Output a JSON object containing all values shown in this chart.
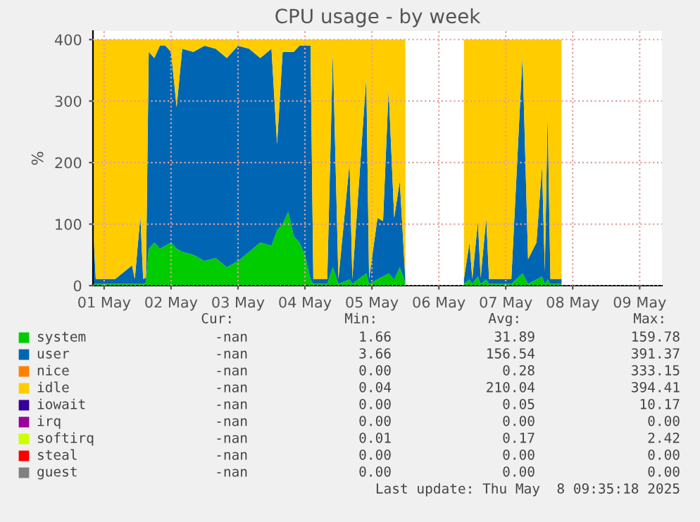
{
  "chart_data": {
    "type": "area",
    "stacked": true,
    "title": "CPU usage - by week",
    "ylabel": "%",
    "x": [
      "2025-04-30T20:00",
      "2025-04-30T21:00",
      "2025-05-01T04:00",
      "2025-05-01T10:00",
      "2025-05-01T11:00",
      "2025-05-01T13:00",
      "2025-05-01T14:00",
      "2025-05-01T15:00",
      "2025-05-01T16:00",
      "2025-05-01T18:00",
      "2025-05-01T20:00",
      "2025-05-01T22:00",
      "2025-05-02T00:00",
      "2025-05-02T02:00",
      "2025-05-02T04:00",
      "2025-05-02T08:00",
      "2025-05-02T12:00",
      "2025-05-02T16:00",
      "2025-05-02T20:00",
      "2025-05-03T00:00",
      "2025-05-03T04:00",
      "2025-05-03T08:00",
      "2025-05-03T12:00",
      "2025-05-03T14:00",
      "2025-05-03T16:00",
      "2025-05-03T18:00",
      "2025-05-03T20:00",
      "2025-05-03T22:00",
      "2025-05-04T00:00",
      "2025-05-04T02:00",
      "2025-05-04T03:00",
      "2025-05-04T08:00",
      "2025-05-04T10:00",
      "2025-05-04T12:00",
      "2025-05-04T16:00",
      "2025-05-04T17:00",
      "2025-05-04T22:00",
      "2025-05-04T23:00",
      "2025-05-05T02:00",
      "2025-05-05T04:00",
      "2025-05-05T06:00",
      "2025-05-05T08:00",
      "2025-05-05T10:00",
      "2025-05-05T12:00",
      "2025-05-05T14:00",
      "2025-05-06T09:00",
      "2025-05-06T11:00",
      "2025-05-06T12:00",
      "2025-05-06T14:00",
      "2025-05-06T15:00",
      "2025-05-06T17:00",
      "2025-05-06T18:00",
      "2025-05-07T02:00",
      "2025-05-07T06:00",
      "2025-05-07T08:00",
      "2025-05-07T11:00",
      "2025-05-07T13:00",
      "2025-05-07T14:00",
      "2025-05-07T15:00",
      "2025-05-07T16:00",
      "2025-05-07T19:00",
      "2025-05-07T20:00"
    ],
    "series": [
      {
        "name": "system",
        "color": "#00cc00",
        "values": [
          3,
          3,
          3,
          3,
          3,
          3,
          3,
          5,
          60,
          70,
          60,
          65,
          70,
          60,
          55,
          50,
          40,
          45,
          30,
          40,
          55,
          70,
          65,
          90,
          100,
          120,
          80,
          70,
          50,
          10,
          3,
          3,
          30,
          3,
          10,
          3,
          20,
          3,
          10,
          15,
          20,
          10,
          30,
          5,
          null,
          3,
          10,
          3,
          15,
          3,
          10,
          3,
          3,
          20,
          3,
          10,
          15,
          3,
          10,
          3,
          3,
          3
        ]
      },
      {
        "name": "user",
        "color": "#0066b3",
        "values": [
          100,
          8,
          8,
          30,
          8,
          110,
          8,
          8,
          320,
          300,
          330,
          325,
          310,
          230,
          330,
          330,
          350,
          340,
          340,
          350,
          330,
          300,
          320,
          140,
          280,
          260,
          300,
          320,
          340,
          380,
          8,
          8,
          350,
          8,
          190,
          8,
          320,
          8,
          100,
          90,
          300,
          100,
          140,
          5,
          null,
          8,
          60,
          8,
          90,
          10,
          100,
          8,
          8,
          355,
          40,
          60,
          180,
          20,
          270,
          8,
          8,
          8
        ]
      },
      {
        "name": "nice",
        "color": "#ff8000",
        "values": [
          null,
          null,
          null,
          null,
          null,
          null,
          null,
          null,
          null,
          null,
          null,
          null,
          null,
          null,
          null,
          null,
          null,
          null,
          null,
          null,
          null,
          null,
          null,
          null,
          null,
          null,
          null,
          null,
          null,
          null,
          null,
          null,
          null,
          null,
          null,
          null,
          null,
          null,
          null,
          null,
          null,
          null,
          null,
          null,
          null,
          null,
          null,
          null,
          null,
          null,
          null,
          null,
          null,
          null,
          null,
          null,
          null,
          null,
          null,
          null,
          null,
          null
        ]
      },
      {
        "name": "idle",
        "color": "#ffcc00",
        "values": [
          297,
          389,
          389,
          367,
          389,
          287,
          389,
          387,
          20,
          30,
          10,
          10,
          20,
          110,
          15,
          20,
          10,
          15,
          30,
          10,
          15,
          30,
          15,
          170,
          20,
          20,
          20,
          10,
          10,
          10,
          389,
          389,
          20,
          389,
          200,
          389,
          60,
          389,
          290,
          295,
          80,
          290,
          230,
          390,
          null,
          389,
          330,
          389,
          295,
          387,
          290,
          389,
          389,
          25,
          357,
          330,
          205,
          377,
          120,
          389,
          389,
          389
        ]
      },
      {
        "name": "iowait",
        "color": "#330099",
        "values": [
          null,
          null,
          null,
          null,
          null,
          null,
          null,
          null,
          null,
          null,
          null,
          null,
          null,
          null,
          null,
          null,
          null,
          null,
          null,
          null,
          null,
          null,
          null,
          null,
          null,
          null,
          null,
          null,
          null,
          null,
          null,
          null,
          null,
          null,
          null,
          null,
          null,
          null,
          null,
          null,
          null,
          null,
          null,
          null,
          null,
          null,
          null,
          null,
          null,
          null,
          null,
          null,
          null,
          null,
          null,
          null,
          null,
          null,
          null,
          null,
          null,
          null
        ]
      },
      {
        "name": "irq",
        "color": "#990099",
        "values": [
          null,
          null,
          null,
          null,
          null,
          null,
          null,
          null,
          null,
          null,
          null,
          null,
          null,
          null,
          null,
          null,
          null,
          null,
          null,
          null,
          null,
          null,
          null,
          null,
          null,
          null,
          null,
          null,
          null,
          null,
          null,
          null,
          null,
          null,
          null,
          null,
          null,
          null,
          null,
          null,
          null,
          null,
          null,
          null,
          null,
          null,
          null,
          null,
          null,
          null,
          null,
          null,
          null,
          null,
          null,
          null,
          null,
          null,
          null,
          null,
          null,
          null
        ]
      },
      {
        "name": "softirq",
        "color": "#ccff00",
        "values": [
          null,
          null,
          null,
          null,
          null,
          null,
          null,
          null,
          null,
          null,
          null,
          null,
          null,
          null,
          null,
          null,
          null,
          null,
          null,
          null,
          null,
          null,
          null,
          null,
          null,
          null,
          null,
          null,
          null,
          null,
          null,
          null,
          null,
          null,
          null,
          null,
          null,
          null,
          null,
          null,
          null,
          null,
          null,
          null,
          null,
          null,
          null,
          null,
          null,
          null,
          null,
          null,
          null,
          null,
          null,
          null,
          null,
          null,
          null,
          null,
          null,
          null
        ]
      },
      {
        "name": "steal",
        "color": "#ff0000",
        "values": [
          null,
          null,
          null,
          null,
          null,
          null,
          null,
          null,
          null,
          null,
          null,
          null,
          null,
          null,
          null,
          null,
          null,
          null,
          null,
          null,
          null,
          null,
          null,
          null,
          null,
          null,
          null,
          null,
          null,
          null,
          null,
          null,
          null,
          null,
          null,
          null,
          null,
          null,
          null,
          null,
          null,
          null,
          null,
          null,
          null,
          null,
          null,
          null,
          null,
          null,
          null,
          null,
          null,
          null,
          null,
          null,
          null,
          null,
          null,
          null,
          null,
          null
        ]
      },
      {
        "name": "guest",
        "color": "#808080",
        "values": [
          null,
          null,
          null,
          null,
          null,
          null,
          null,
          null,
          null,
          null,
          null,
          null,
          null,
          null,
          null,
          null,
          null,
          null,
          null,
          null,
          null,
          null,
          null,
          null,
          null,
          null,
          null,
          null,
          null,
          null,
          null,
          null,
          null,
          null,
          null,
          null,
          null,
          null,
          null,
          null,
          null,
          null,
          null,
          null,
          null,
          null,
          null,
          null,
          null,
          null,
          null,
          null,
          null,
          null,
          null,
          null,
          null,
          null,
          null,
          null,
          null,
          null
        ]
      }
    ],
    "xlim": [
      "2025-04-30T20:00",
      "2025-05-09T08:00"
    ],
    "xticks": [
      {
        "value": "2025-05-01",
        "label": "01 May"
      },
      {
        "value": "2025-05-02",
        "label": "02 May"
      },
      {
        "value": "2025-05-03",
        "label": "03 May"
      },
      {
        "value": "2025-05-04",
        "label": "04 May"
      },
      {
        "value": "2025-05-05",
        "label": "05 May"
      },
      {
        "value": "2025-05-06",
        "label": "06 May"
      },
      {
        "value": "2025-05-07",
        "label": "07 May"
      },
      {
        "value": "2025-05-08",
        "label": "08 May"
      },
      {
        "value": "2025-05-09",
        "label": "09 May"
      }
    ],
    "ylim": [
      0,
      414
    ],
    "yticks": [
      0,
      100,
      200,
      300,
      400
    ],
    "grid": true,
    "legend": "bottom",
    "annotations": [
      "Cur:",
      "Min:",
      "Avg:",
      "Max:",
      "-nan",
      "1.66",
      "31.89",
      "159.78",
      "-nan",
      "3.66",
      "156.54",
      "391.37",
      "-nan",
      "0.00",
      "0.28",
      "333.15",
      "-nan",
      "0.04",
      "210.04",
      "394.41",
      "-nan",
      "0.00",
      "0.05",
      "10.17",
      "-nan",
      "0.00",
      "0.00",
      "0.00",
      "-nan",
      "0.01",
      "0.17",
      "2.42",
      "-nan",
      "0.00",
      "0.00",
      "0.00",
      "-nan",
      "0.00",
      "0.00",
      "0.00",
      "Last update: Thu May  8 09:35:18 2025"
    ]
  }
}
